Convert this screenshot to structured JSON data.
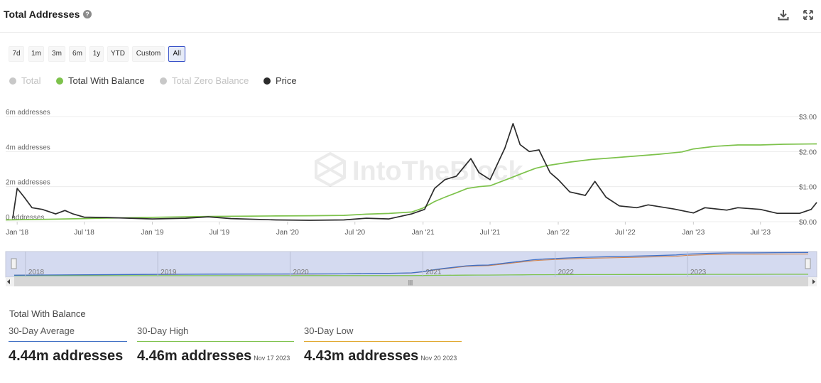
{
  "header": {
    "title": "Total Addresses",
    "help_icon": "question-icon",
    "download_icon": "download-icon",
    "expand_icon": "expand-icon"
  },
  "range_buttons": [
    "7d",
    "1m",
    "3m",
    "6m",
    "1y",
    "YTD",
    "Custom",
    "All"
  ],
  "range_selected": "All",
  "legend": [
    {
      "label": "Total",
      "color": "#c8c8c8",
      "enabled": false
    },
    {
      "label": "Total With Balance",
      "color": "#7dc24b",
      "enabled": true
    },
    {
      "label": "Total Zero Balance",
      "color": "#c8c8c8",
      "enabled": false
    },
    {
      "label": "Price",
      "color": "#2b2b2b",
      "enabled": true
    }
  ],
  "watermark": "IntoTheBlock",
  "chart_data": {
    "type": "line",
    "left_axis": {
      "ticks": [
        "0 addresses",
        "2m addresses",
        "4m addresses",
        "6m addresses"
      ],
      "range": [
        0,
        6000000
      ]
    },
    "right_axis": {
      "ticks": [
        "$0.00",
        "$1.00",
        "$2.00",
        "$3.00"
      ],
      "range": [
        0,
        3
      ]
    },
    "x_axis": {
      "ticks": [
        "Jan '18",
        "Jul '18",
        "Jan '19",
        "Jul '19",
        "Jan '20",
        "Jul '20",
        "Jan '21",
        "Jul '21",
        "Jan '22",
        "Jul '22",
        "Jan '23",
        "Jul '23"
      ],
      "range": [
        "2017-12-01",
        "2023-11-30"
      ]
    },
    "grid": true,
    "series": [
      {
        "name": "Total With Balance",
        "color": "#7dc24b",
        "axis": "left",
        "points": [
          [
            "2017-12-01",
            100000
          ],
          [
            "2018-03-01",
            130000
          ],
          [
            "2018-07-01",
            180000
          ],
          [
            "2018-12-01",
            240000
          ],
          [
            "2019-06-01",
            300000
          ],
          [
            "2019-12-01",
            330000
          ],
          [
            "2020-03-01",
            340000
          ],
          [
            "2020-06-01",
            360000
          ],
          [
            "2020-08-01",
            430000
          ],
          [
            "2020-10-01",
            470000
          ],
          [
            "2020-12-01",
            550000
          ],
          [
            "2021-01-01",
            780000
          ],
          [
            "2021-02-01",
            1150000
          ],
          [
            "2021-03-01",
            1400000
          ],
          [
            "2021-04-01",
            1650000
          ],
          [
            "2021-05-01",
            1900000
          ],
          [
            "2021-06-01",
            2000000
          ],
          [
            "2021-07-01",
            2050000
          ],
          [
            "2021-08-01",
            2300000
          ],
          [
            "2021-09-01",
            2550000
          ],
          [
            "2021-10-01",
            2800000
          ],
          [
            "2021-11-01",
            3050000
          ],
          [
            "2021-12-01",
            3200000
          ],
          [
            "2022-02-01",
            3400000
          ],
          [
            "2022-04-01",
            3550000
          ],
          [
            "2022-06-01",
            3650000
          ],
          [
            "2022-08-01",
            3750000
          ],
          [
            "2022-10-01",
            3850000
          ],
          [
            "2022-12-01",
            3980000
          ],
          [
            "2023-01-01",
            4150000
          ],
          [
            "2023-03-01",
            4300000
          ],
          [
            "2023-05-01",
            4380000
          ],
          [
            "2023-07-01",
            4380000
          ],
          [
            "2023-09-01",
            4420000
          ],
          [
            "2023-11-30",
            4440000
          ]
        ]
      },
      {
        "name": "Price",
        "color": "#2b2b2b",
        "axis": "right",
        "points": [
          [
            "2017-12-20",
            0.1
          ],
          [
            "2018-01-01",
            0.95
          ],
          [
            "2018-01-20",
            0.7
          ],
          [
            "2018-02-10",
            0.4
          ],
          [
            "2018-03-10",
            0.35
          ],
          [
            "2018-04-15",
            0.22
          ],
          [
            "2018-05-10",
            0.32
          ],
          [
            "2018-06-01",
            0.22
          ],
          [
            "2018-07-01",
            0.13
          ],
          [
            "2018-09-01",
            0.12
          ],
          [
            "2018-11-01",
            0.1
          ],
          [
            "2019-01-01",
            0.08
          ],
          [
            "2019-04-01",
            0.1
          ],
          [
            "2019-06-01",
            0.14
          ],
          [
            "2019-08-01",
            0.09
          ],
          [
            "2019-12-01",
            0.05
          ],
          [
            "2020-03-01",
            0.04
          ],
          [
            "2020-06-01",
            0.05
          ],
          [
            "2020-08-01",
            0.1
          ],
          [
            "2020-10-01",
            0.08
          ],
          [
            "2020-12-01",
            0.22
          ],
          [
            "2021-01-05",
            0.35
          ],
          [
            "2021-02-01",
            0.95
          ],
          [
            "2021-03-01",
            1.2
          ],
          [
            "2021-04-01",
            1.3
          ],
          [
            "2021-05-10",
            1.8
          ],
          [
            "2021-06-01",
            1.4
          ],
          [
            "2021-07-01",
            1.2
          ],
          [
            "2021-08-10",
            2.1
          ],
          [
            "2021-09-01",
            2.8
          ],
          [
            "2021-09-20",
            2.2
          ],
          [
            "2021-10-15",
            2.0
          ],
          [
            "2021-11-10",
            2.05
          ],
          [
            "2021-12-10",
            1.4
          ],
          [
            "2022-01-01",
            1.2
          ],
          [
            "2022-02-01",
            0.85
          ],
          [
            "2022-03-15",
            0.75
          ],
          [
            "2022-04-10",
            1.15
          ],
          [
            "2022-05-10",
            0.7
          ],
          [
            "2022-06-15",
            0.45
          ],
          [
            "2022-08-01",
            0.4
          ],
          [
            "2022-09-01",
            0.48
          ],
          [
            "2022-11-10",
            0.36
          ],
          [
            "2023-01-01",
            0.25
          ],
          [
            "2023-02-01",
            0.4
          ],
          [
            "2023-04-01",
            0.33
          ],
          [
            "2023-05-01",
            0.4
          ],
          [
            "2023-07-01",
            0.35
          ],
          [
            "2023-08-15",
            0.24
          ],
          [
            "2023-10-15",
            0.24
          ],
          [
            "2023-11-15",
            0.35
          ],
          [
            "2023-11-30",
            0.55
          ]
        ]
      }
    ]
  },
  "navigator": {
    "year_labels": [
      "2018",
      "2019",
      "2020",
      "2021",
      "2022",
      "2023"
    ],
    "scrollbar_grip": "|||"
  },
  "summary": {
    "label": "Total With Balance",
    "stats": [
      {
        "name": "30-Day Average",
        "value": "4.44m addresses",
        "date": "",
        "color": "#3f6fc4"
      },
      {
        "name": "30-Day High",
        "value": "4.46m addresses",
        "date": "Nov 17 2023",
        "color": "#7dc24b"
      },
      {
        "name": "30-Day Low",
        "value": "4.43m addresses",
        "date": "Nov 20 2023",
        "color": "#e0a82e"
      }
    ]
  }
}
